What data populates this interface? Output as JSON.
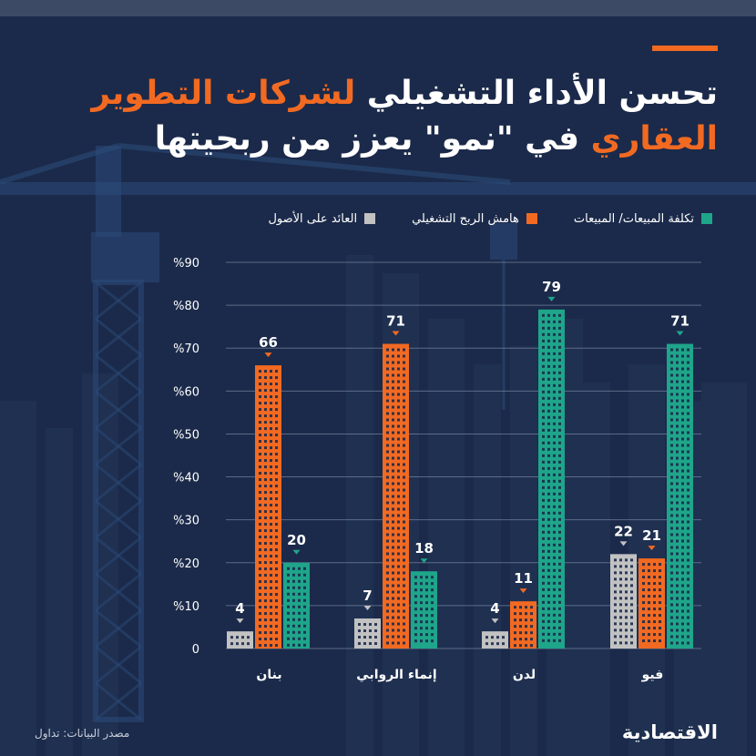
{
  "title": {
    "part1": "تحسن الأداء التشغيلي ",
    "part2": "لشركات التطوير",
    "part3": "العقاري",
    "part4": " في \"نمو\" يعزز من ربحيتها"
  },
  "legend": [
    {
      "label": "تكلفة المبيعات/ المبيعات",
      "color": "#1fa58a"
    },
    {
      "label": "هامش الربح التشغيلي",
      "color": "#f26a22"
    },
    {
      "label": "العائد على الأصول",
      "color": "#c2c2c2"
    }
  ],
  "footer": {
    "source": "مصدر البيانات: تداول",
    "logo": "الاقتصادية"
  },
  "chart_data": {
    "type": "bar",
    "categories": [
      "بنان",
      "إنماء الروابي",
      "لدن",
      "فيو"
    ],
    "series": [
      {
        "name": "العائد على الأصول",
        "color": "#c2c2c2",
        "values": [
          4,
          7,
          4,
          22
        ]
      },
      {
        "name": "هامش الربح التشغيلي",
        "color": "#f26a22",
        "values": [
          66,
          71,
          11,
          21
        ]
      },
      {
        "name": "تكلفة المبيعات/ المبيعات",
        "color": "#1fa58a",
        "values": [
          20,
          18,
          79,
          71
        ]
      }
    ],
    "ylim": [
      0,
      90
    ],
    "yticks": [
      "0",
      "%10",
      "%20",
      "%30",
      "%40",
      "%50",
      "%60",
      "%70",
      "%80",
      "%90"
    ],
    "grid": true
  }
}
